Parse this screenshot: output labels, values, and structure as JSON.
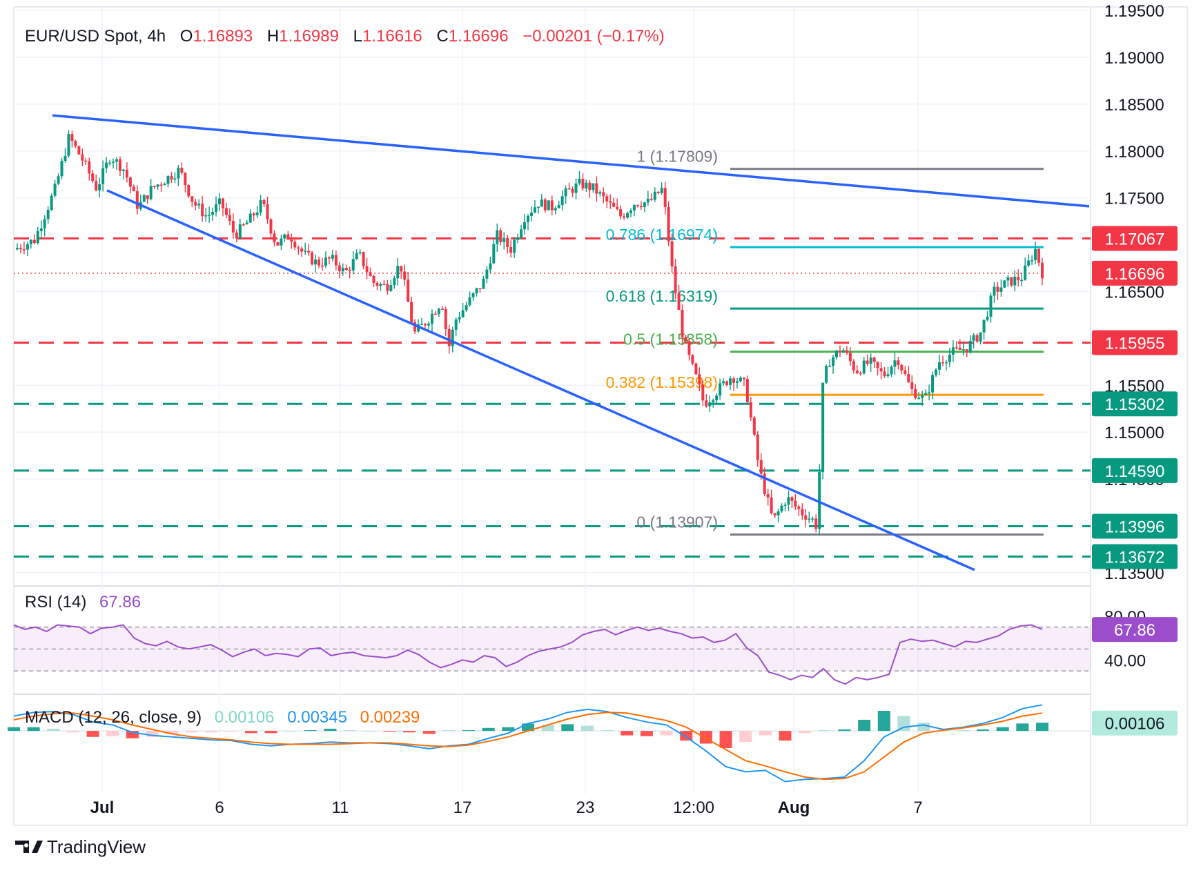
{
  "header": {
    "symbol": "EUR/USD Spot, 4h",
    "o_label": "O",
    "o_value": "1.16893",
    "h_label": "H",
    "h_value": "1.16989",
    "l_label": "L",
    "l_value": "1.16616",
    "c_label": "C",
    "c_value": "1.16696",
    "change": "−0.00201 (−0.17%)"
  },
  "colors": {
    "up": "#089981",
    "down": "#f23645",
    "trend": "#2962ff",
    "red_level": "#f23645",
    "green_level": "#089981",
    "fib_0786": "#00bcd4",
    "fib_0618": "#089981",
    "fib_05": "#4caf50",
    "fib_0382": "#ff9800",
    "fib_gray": "#787b86",
    "rsi": "#9c4dcc",
    "macd": "#2196f3",
    "signal": "#ff6d00"
  },
  "chart_data": [
    {
      "type": "candlestick",
      "title": "EUR/USD Spot, 4h",
      "ylim": [
        1.1345,
        1.196
      ],
      "y_ticks": [
        "1.19500",
        "1.19000",
        "1.18500",
        "1.18000",
        "1.17500",
        "1.16500",
        "1.15500",
        "1.15000",
        "1.14500",
        "1.13500"
      ],
      "y_tick_values": [
        1.195,
        1.19,
        1.185,
        1.18,
        1.175,
        1.165,
        1.155,
        1.15,
        1.145,
        1.135
      ],
      "x_ticks": [
        "Jul",
        "6",
        "11",
        "17",
        "23",
        "12:00",
        "Aug",
        "7"
      ],
      "current_price": {
        "label": "1.16696",
        "value": 1.16696
      },
      "horizontal_levels": [
        {
          "label": "1.17067",
          "value": 1.17067,
          "color": "red"
        },
        {
          "label": "1.15955",
          "value": 1.15955,
          "color": "red"
        },
        {
          "label": "1.15302",
          "value": 1.15302,
          "color": "green"
        },
        {
          "label": "1.14590",
          "value": 1.1459,
          "color": "green"
        },
        {
          "label": "1.13996",
          "value": 1.13996,
          "color": "green"
        },
        {
          "label": "1.13672",
          "value": 1.13672,
          "color": "green"
        }
      ],
      "fibonacci": [
        {
          "label": "1 (1.17809)",
          "value": 1.17809
        },
        {
          "label": "0.786 (1.16974)",
          "value": 1.16974
        },
        {
          "label": "0.618 (1.16319)",
          "value": 1.16319
        },
        {
          "label": "0.5 (1.15858)",
          "value": 1.15858
        },
        {
          "label": "0.382 (1.15398)",
          "value": 1.15398
        },
        {
          "label": "0 (1.13907)",
          "value": 1.13907
        }
      ],
      "trendlines": [
        {
          "from": [
            0.0,
            1.1838
          ],
          "to": [
            1.0,
            1.1741
          ]
        },
        {
          "from": [
            0.06,
            1.1758
          ],
          "to": [
            0.92,
            1.1353
          ]
        }
      ],
      "price_path": [
        [
          0.0,
          1.1695
        ],
        [
          0.03,
          1.1705
        ],
        [
          0.06,
          1.176
        ],
        [
          0.08,
          1.1815
        ],
        [
          0.1,
          1.179
        ],
        [
          0.12,
          1.176
        ],
        [
          0.14,
          1.1795
        ],
        [
          0.16,
          1.178
        ],
        [
          0.18,
          1.174
        ],
        [
          0.2,
          1.176
        ],
        [
          0.22,
          1.177
        ],
        [
          0.24,
          1.178
        ],
        [
          0.26,
          1.1745
        ],
        [
          0.28,
          1.173
        ],
        [
          0.3,
          1.1745
        ],
        [
          0.32,
          1.171
        ],
        [
          0.34,
          1.1725
        ],
        [
          0.36,
          1.1745
        ],
        [
          0.38,
          1.17
        ],
        [
          0.4,
          1.171
        ],
        [
          0.42,
          1.169
        ],
        [
          0.44,
          1.168
        ],
        [
          0.46,
          1.1685
        ],
        [
          0.48,
          1.167
        ],
        [
          0.5,
          1.169
        ],
        [
          0.52,
          1.166
        ],
        [
          0.54,
          1.1655
        ],
        [
          0.56,
          1.168
        ],
        [
          0.58,
          1.1605
        ],
        [
          0.6,
          1.162
        ],
        [
          0.62,
          1.164
        ],
        [
          0.63,
          1.159
        ],
        [
          0.64,
          1.162
        ],
        [
          0.66,
          1.164
        ],
        [
          0.68,
          1.166
        ],
        [
          0.7,
          1.171
        ],
        [
          0.72,
          1.1695
        ],
        [
          0.74,
          1.173
        ],
        [
          0.76,
          1.1745
        ],
        [
          0.78,
          1.174
        ],
        [
          0.8,
          1.1755
        ],
        [
          0.82,
          1.1765
        ],
        [
          0.84,
          1.176
        ],
        [
          0.86,
          1.1745
        ],
        [
          0.88,
          1.173
        ],
        [
          0.9,
          1.1745
        ],
        [
          0.92,
          1.1745
        ],
        [
          0.94,
          1.176
        ],
        [
          0.955,
          1.1665
        ],
        [
          0.97,
          1.16
        ],
        [
          0.98,
          1.1575
        ],
        [
          0.99,
          1.1555
        ],
        [
          1.0,
          1.153
        ],
        [
          1.02,
          1.1545
        ],
        [
          1.04,
          1.156
        ],
        [
          1.06,
          1.155
        ],
        [
          1.08,
          1.146
        ],
        [
          1.1,
          1.1405
        ],
        [
          1.12,
          1.143
        ],
        [
          1.14,
          1.1415
        ],
        [
          1.16,
          1.1405
        ],
        [
          1.165,
          1.1395
        ],
        [
          1.17,
          1.154
        ],
        [
          1.18,
          1.1575
        ],
        [
          1.2,
          1.159
        ],
        [
          1.22,
          1.1565
        ],
        [
          1.24,
          1.1575
        ],
        [
          1.26,
          1.156
        ],
        [
          1.28,
          1.158
        ],
        [
          1.3,
          1.1545
        ],
        [
          1.32,
          1.1535
        ],
        [
          1.34,
          1.1575
        ],
        [
          1.36,
          1.1585
        ],
        [
          1.38,
          1.159
        ],
        [
          1.4,
          1.1605
        ],
        [
          1.42,
          1.165
        ],
        [
          1.44,
          1.166
        ],
        [
          1.46,
          1.1665
        ],
        [
          1.48,
          1.1695
        ],
        [
          1.49,
          1.167
        ]
      ]
    },
    {
      "type": "line",
      "title": "RSI (14)",
      "value_label": "67.86",
      "ylim": [
        15,
        95
      ],
      "y_ticks": [
        "80.00",
        "40.00"
      ],
      "y_tick_values": [
        80,
        40
      ],
      "band": [
        30,
        70
      ],
      "mid": 50,
      "values": [
        72,
        68,
        70,
        66,
        72,
        71,
        70,
        64,
        69,
        70,
        72,
        60,
        55,
        53,
        57,
        52,
        50,
        52,
        54,
        49,
        43,
        47,
        50,
        44,
        46,
        45,
        43,
        50,
        51,
        44,
        46,
        47,
        44,
        43,
        42,
        44,
        49,
        45,
        38,
        33,
        36,
        40,
        38,
        44,
        42,
        34,
        38,
        44,
        48,
        50,
        52,
        56,
        63,
        66,
        68,
        63,
        67,
        70,
        67,
        69,
        66,
        64,
        60,
        61,
        56,
        58,
        64,
        51,
        44,
        29,
        26,
        22,
        26,
        24,
        32,
        22,
        18,
        24,
        22,
        24,
        27,
        56,
        59,
        57,
        58,
        55,
        52,
        57,
        56,
        59,
        62,
        68,
        71,
        72,
        68
      ]
    },
    {
      "type": "macd",
      "title": "MACD (12, 26, close, 9)",
      "histogram_label": "0.00106",
      "macd_label": "0.00345",
      "signal_label": "0.00239",
      "ylim": [
        -0.0075,
        0.004
      ],
      "macd": [
        0.002,
        0.0025,
        0.0026,
        0.0022,
        0.0012,
        0.0008,
        -0.0002,
        -0.0006,
        -0.0008,
        -0.001,
        -0.0012,
        -0.0013,
        -0.0018,
        -0.002,
        -0.0018,
        -0.0017,
        -0.0015,
        -0.0016,
        -0.0016,
        -0.0017,
        -0.002,
        -0.0024,
        -0.002,
        -0.0018,
        -0.001,
        -0.0003,
        0.001,
        0.0016,
        0.0025,
        0.0029,
        0.0026,
        0.0018,
        0.0012,
        0.0008,
        -0.0008,
        -0.0027,
        -0.0048,
        -0.0055,
        -0.0053,
        -0.0068,
        -0.0065,
        -0.0064,
        -0.0062,
        -0.004,
        -0.0008,
        0.0005,
        0.0008,
        0.0002,
        0.0005,
        0.001,
        0.0018,
        0.003,
        0.0035
      ],
      "signal": [
        0.0015,
        0.002,
        0.0023,
        0.0024,
        0.002,
        0.0015,
        0.0008,
        0.0002,
        -0.0004,
        -0.0008,
        -0.001,
        -0.0012,
        -0.0015,
        -0.0017,
        -0.0018,
        -0.0018,
        -0.0018,
        -0.0017,
        -0.0016,
        -0.0016,
        -0.0018,
        -0.002,
        -0.0021,
        -0.0019,
        -0.0014,
        -0.0008,
        0.0,
        0.0008,
        0.0016,
        0.0022,
        0.0025,
        0.0024,
        0.0019,
        0.0014,
        0.0005,
        -0.001,
        -0.0025,
        -0.004,
        -0.0047,
        -0.0055,
        -0.0062,
        -0.0065,
        -0.0064,
        -0.0055,
        -0.0035,
        -0.0015,
        -0.0003,
        0.0001,
        0.0004,
        0.0008,
        0.0013,
        0.002,
        0.0024
      ]
    }
  ],
  "brand": {
    "name": "TradingView"
  }
}
